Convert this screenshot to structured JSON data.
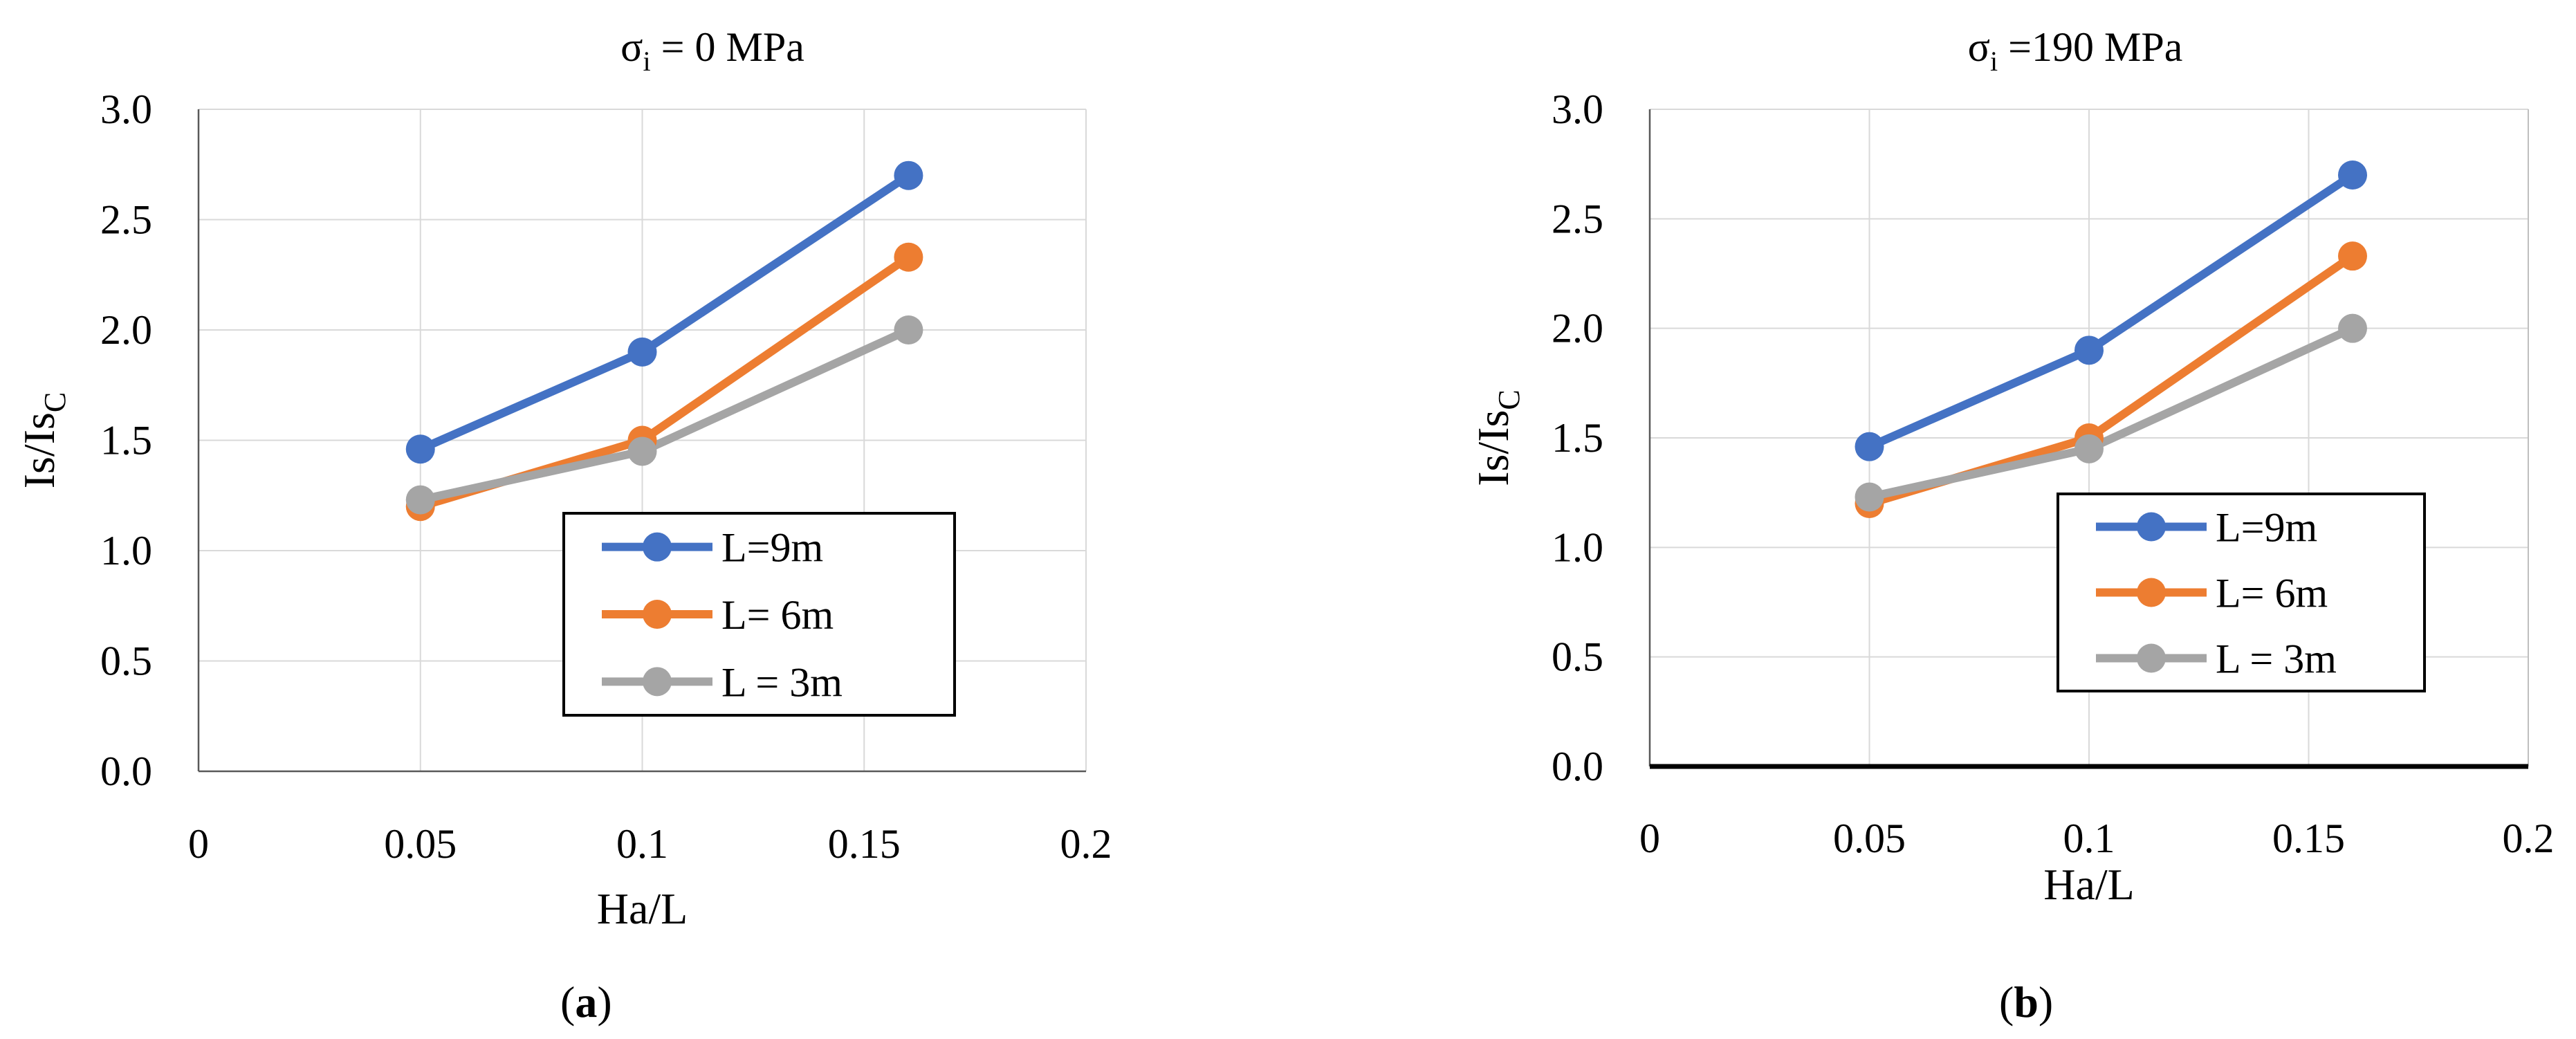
{
  "chart_data": [
    {
      "type": "line",
      "panel_label": "(a)",
      "title": {
        "symbol": "σ",
        "subscript": "i",
        "rest": " = 0 MPa"
      },
      "xlabel": "Ha/L",
      "ylabel": {
        "main": "Is/Is",
        "subscript": "C"
      },
      "xlim": [
        0,
        0.2
      ],
      "ylim": [
        0,
        3.0
      ],
      "xticks": [
        0,
        0.05,
        0.1,
        0.15,
        0.2
      ],
      "xtick_labels": [
        "0",
        "0.05",
        "0.1",
        "0.15",
        "0.2"
      ],
      "yticks": [
        0,
        0.5,
        1.0,
        1.5,
        2.0,
        2.5,
        3.0
      ],
      "ytick_labels": [
        "0.0",
        "0.5",
        "1.0",
        "1.5",
        "2.0",
        "2.5",
        "3.0"
      ],
      "grid": true,
      "legend_position": "lower-right",
      "series": [
        {
          "name": "L=9m",
          "color": "#4472C4",
          "x": [
            0.05,
            0.1,
            0.16
          ],
          "y": [
            1.46,
            1.9,
            2.7
          ]
        },
        {
          "name": "L= 6m",
          "color": "#ED7D31",
          "x": [
            0.05,
            0.1,
            0.16
          ],
          "y": [
            1.2,
            1.5,
            2.33
          ]
        },
        {
          "name": "L = 3m",
          "color": "#A5A5A5",
          "x": [
            0.05,
            0.1,
            0.16
          ],
          "y": [
            1.23,
            1.45,
            2.0
          ]
        }
      ]
    },
    {
      "type": "line",
      "panel_label": "(b)",
      "title": {
        "symbol": "σ",
        "subscript": "i",
        "rest": " =190 MPa"
      },
      "xlabel": "Ha/L",
      "ylabel": {
        "main": "Is/Is",
        "subscript": "C"
      },
      "xlim": [
        0,
        0.2
      ],
      "ylim": [
        0,
        3.0
      ],
      "xticks": [
        0,
        0.05,
        0.1,
        0.15,
        0.2
      ],
      "xtick_labels": [
        "0",
        "0.05",
        "0.1",
        "0.15",
        "0.2"
      ],
      "yticks": [
        0,
        0.5,
        1.0,
        1.5,
        2.0,
        2.5,
        3.0
      ],
      "ytick_labels": [
        "0.0",
        "0.5",
        "1.0",
        "1.5",
        "2.0",
        "2.5",
        "3.0"
      ],
      "grid": true,
      "legend_position": "lower-right",
      "series": [
        {
          "name": "L=9m",
          "color": "#4472C4",
          "x": [
            0.05,
            0.1,
            0.16
          ],
          "y": [
            1.46,
            1.9,
            2.7
          ]
        },
        {
          "name": "L= 6m",
          "color": "#ED7D31",
          "x": [
            0.05,
            0.1,
            0.16
          ],
          "y": [
            1.2,
            1.5,
            2.33
          ]
        },
        {
          "name": "L = 3m",
          "color": "#A5A5A5",
          "x": [
            0.05,
            0.1,
            0.16
          ],
          "y": [
            1.23,
            1.45,
            2.0
          ]
        }
      ]
    }
  ]
}
